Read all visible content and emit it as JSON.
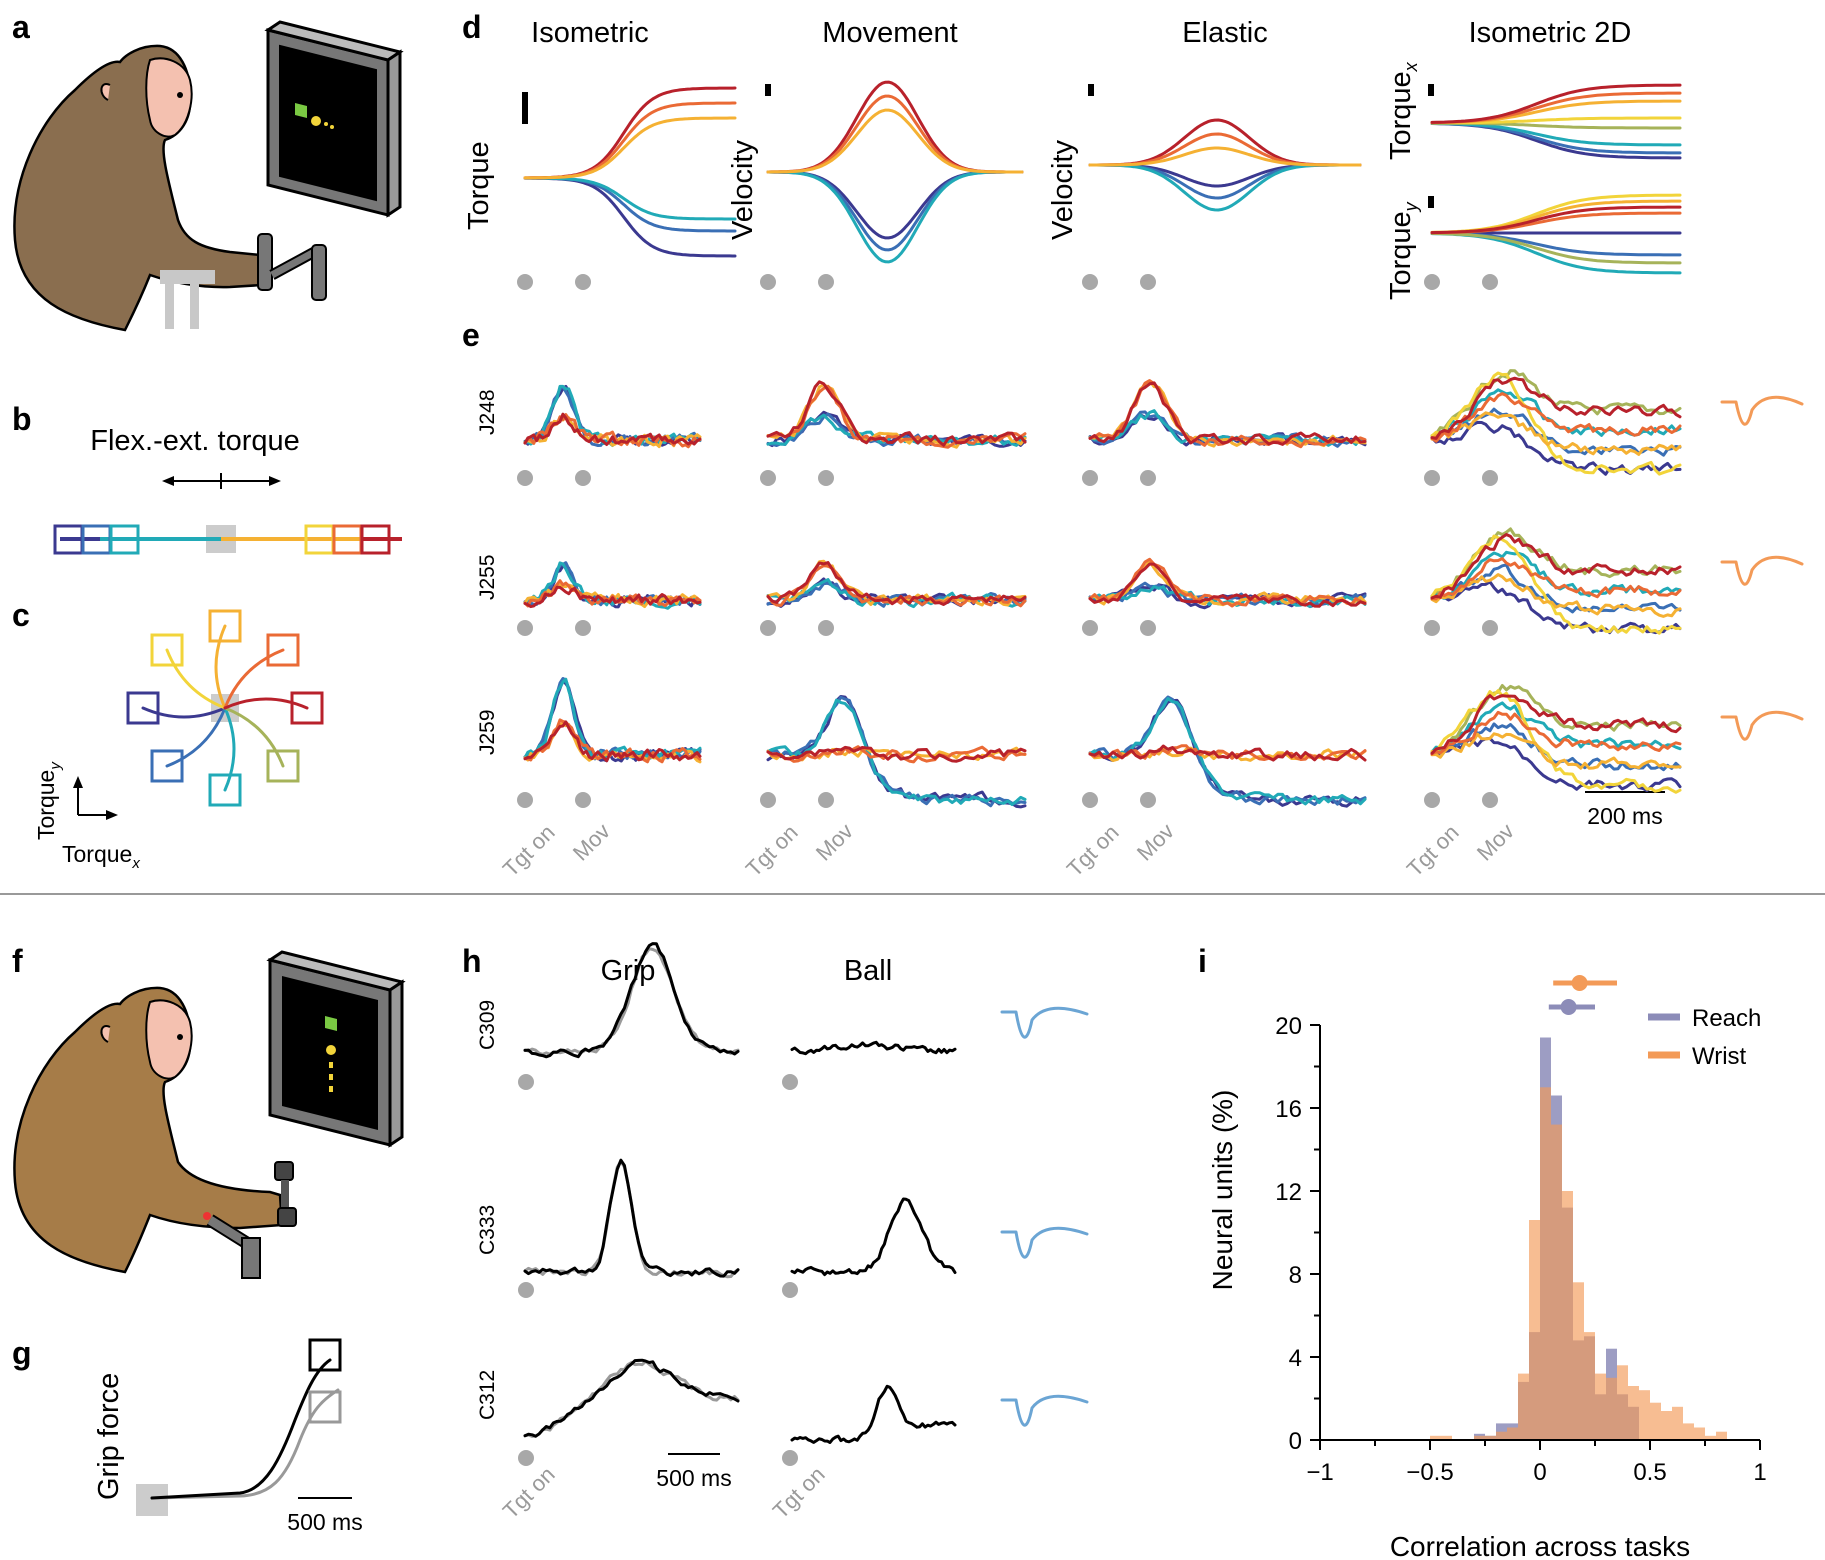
{
  "panels": {
    "a": "a",
    "b": "b",
    "c": "c",
    "d": "d",
    "e": "e",
    "f": "f",
    "g": "g",
    "h": "h",
    "i": "i"
  },
  "tasks": [
    "Isometric",
    "Movement",
    "Elastic",
    "Isometric 2D"
  ],
  "d_ylabels": {
    "iso": "Torque",
    "mov": "Velocity",
    "ela": "Velocity",
    "tx": "Torque",
    "tx_sub": "x",
    "ty": "Torque",
    "ty_sub": "y"
  },
  "event_labels": {
    "target_on": "Tgt on",
    "movement": "Mov"
  },
  "units_wrist": [
    "J248",
    "J255",
    "J259"
  ],
  "scale_200": "200 ms",
  "panel_b_title": "Flex.-ext. torque",
  "panel_c_axes": {
    "y": "Torque",
    "y_sub": "y",
    "x": "Torque",
    "x_sub": "x"
  },
  "grip_tasks": [
    "Grip",
    "Ball"
  ],
  "units_grip": [
    "C309",
    "C333",
    "C312"
  ],
  "grip_force_label": "Grip force",
  "scale_500": "500 ms",
  "colors": {
    "dir1": "#3b3990",
    "dir2": "#3a6fb5",
    "dir3": "#21aab7",
    "dir4": "#a6b35a",
    "dir5": "#f2d43a",
    "dir6": "#f5b133",
    "dir7": "#ea6a35",
    "dir8": "#b8212b",
    "reach": "#8c8cb8",
    "wrist": "#f39a57",
    "monkey_a": "#8a6e4f",
    "monkey_f": "#a67c48"
  },
  "chart_data": {
    "type": "bar",
    "xlabel": "Correlation across tasks",
    "ylabel": "Neural units (%)",
    "xlim": [
      -1,
      1
    ],
    "ylim": [
      0,
      20
    ],
    "xticks": [
      -1,
      -0.5,
      0,
      0.5,
      1
    ],
    "xtick_labels": [
      "−1",
      "−0.5",
      "0",
      "0.5",
      "1"
    ],
    "yticks": [
      0,
      4,
      8,
      12,
      16,
      20
    ],
    "bin_width": 0.05,
    "bin_starts": [
      -0.5,
      -0.45,
      -0.4,
      -0.35,
      -0.3,
      -0.25,
      -0.2,
      -0.15,
      -0.1,
      -0.05,
      0.0,
      0.05,
      0.1,
      0.15,
      0.2,
      0.25,
      0.3,
      0.35,
      0.4,
      0.45,
      0.5,
      0.55,
      0.6,
      0.65,
      0.7,
      0.75,
      0.8
    ],
    "series": [
      {
        "name": "Reach",
        "values": [
          0,
          0,
          0,
          0,
          0.3,
          0.2,
          0.8,
          0.8,
          2.8,
          5.2,
          19.4,
          16.6,
          11.2,
          4.8,
          5.0,
          2.2,
          4.4,
          2.2,
          1.6,
          0,
          0,
          0,
          0,
          0,
          0,
          0,
          0
        ]
      },
      {
        "name": "Wrist",
        "values": [
          0.2,
          0.2,
          0,
          0,
          0.2,
          0.2,
          0.4,
          0.6,
          3.2,
          10.6,
          17.0,
          15.2,
          12.0,
          7.6,
          5.2,
          3.2,
          3.0,
          3.6,
          2.6,
          2.4,
          1.8,
          1.4,
          1.6,
          0.8,
          0.6,
          0.2,
          0.4
        ]
      }
    ],
    "summary": [
      {
        "name": "Wrist",
        "mean": 0.18,
        "low": 0.06,
        "high": 0.35
      },
      {
        "name": "Reach",
        "mean": 0.13,
        "low": 0.04,
        "high": 0.25
      }
    ],
    "legend": "top-right"
  }
}
